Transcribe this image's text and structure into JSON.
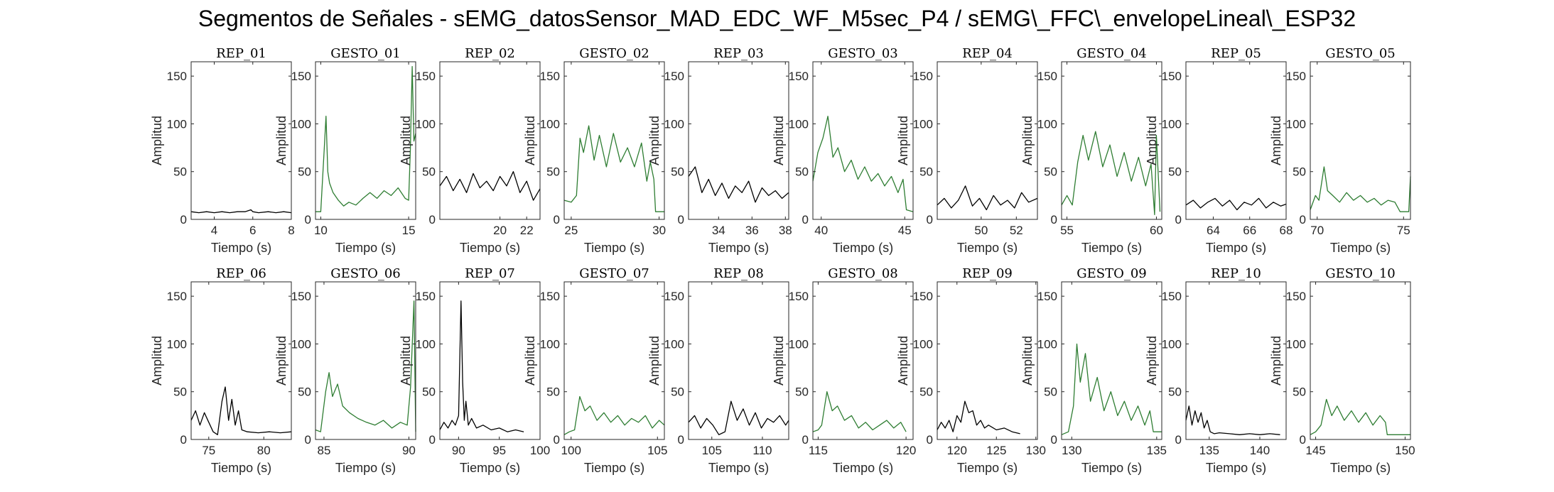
{
  "figure": {
    "title": "Segmentos de Señales - sEMG_datosSensor_MAD_EDC_WF_M5sec_P4 / sEMG\\_FFC\\_envelopeLineal\\_ESP32",
    "colors": {
      "rep": "#000000",
      "gesto": "#2e7d32",
      "axis": "#262626"
    }
  },
  "chart_data": [
    {
      "type": "line",
      "title": "REP_01",
      "xlabel": "Tiempo (s)",
      "ylabel": "Amplitud",
      "xlim": [
        2.8,
        8
      ],
      "ylim": [
        0,
        165
      ],
      "xticks": [
        4,
        6,
        8
      ],
      "yticks": [
        0,
        50,
        100,
        150
      ],
      "kind": "rep",
      "x": [
        2.8,
        3.2,
        3.6,
        4.0,
        4.4,
        4.8,
        5.2,
        5.6,
        5.9,
        6.0,
        6.3,
        6.8,
        7.2,
        7.6,
        8.0
      ],
      "y": [
        8,
        7,
        8,
        7,
        8,
        7,
        8,
        8,
        10,
        8,
        7,
        8,
        7,
        8,
        7
      ]
    },
    {
      "type": "line",
      "title": "GESTO_01",
      "xlabel": "Tiempo (s)",
      "ylabel": "Amplitud",
      "xlim": [
        9.7,
        15.4
      ],
      "ylim": [
        0,
        165
      ],
      "xticks": [
        10,
        15
      ],
      "yticks": [
        0,
        50,
        100,
        150
      ],
      "kind": "gesto",
      "x": [
        9.7,
        10.0,
        10.2,
        10.3,
        10.4,
        10.5,
        10.7,
        11.0,
        11.3,
        11.6,
        12.0,
        12.4,
        12.8,
        13.2,
        13.6,
        14.0,
        14.4,
        14.8,
        15.0,
        15.1,
        15.2,
        15.3,
        15.4
      ],
      "y": [
        8,
        8,
        75,
        108,
        50,
        38,
        28,
        20,
        14,
        18,
        15,
        22,
        28,
        22,
        30,
        25,
        33,
        22,
        20,
        75,
        160,
        82,
        90
      ]
    },
    {
      "type": "line",
      "title": "REP_02",
      "xlabel": "Tiempo (s)",
      "ylabel": "Amplitud",
      "xlim": [
        15.5,
        23
      ],
      "ylim": [
        0,
        165
      ],
      "xticks": [
        20,
        22
      ],
      "yticks": [
        0,
        50,
        100,
        150
      ],
      "kind": "rep",
      "x": [
        15.5,
        16,
        16.5,
        17,
        17.5,
        18,
        18.5,
        19,
        19.5,
        20,
        20.5,
        21,
        21.5,
        22,
        22.5,
        23
      ],
      "y": [
        35,
        45,
        30,
        42,
        28,
        48,
        33,
        40,
        30,
        45,
        35,
        50,
        28,
        40,
        20,
        32
      ]
    },
    {
      "type": "line",
      "title": "GESTO_02",
      "xlabel": "Tiempo (s)",
      "ylabel": "Amplitud",
      "xlim": [
        24.6,
        30.3
      ],
      "ylim": [
        0,
        165
      ],
      "xticks": [
        25,
        30
      ],
      "yticks": [
        0,
        50,
        100,
        150
      ],
      "kind": "gesto",
      "x": [
        24.6,
        25.0,
        25.3,
        25.5,
        25.7,
        26.0,
        26.3,
        26.6,
        27.0,
        27.4,
        27.8,
        28.2,
        28.6,
        29.0,
        29.3,
        29.5,
        29.7,
        29.8,
        30.3
      ],
      "y": [
        20,
        18,
        25,
        85,
        70,
        98,
        62,
        88,
        55,
        90,
        60,
        75,
        55,
        80,
        40,
        60,
        42,
        8,
        8
      ]
    },
    {
      "type": "line",
      "title": "REP_03",
      "xlabel": "Tiempo (s)",
      "ylabel": "Amplitud",
      "xlim": [
        32.2,
        38.2
      ],
      "ylim": [
        0,
        165
      ],
      "xticks": [
        34,
        36,
        38
      ],
      "yticks": [
        0,
        50,
        100,
        150
      ],
      "kind": "rep",
      "x": [
        32.2,
        32.6,
        33.0,
        33.4,
        33.8,
        34.2,
        34.6,
        35.0,
        35.4,
        35.8,
        36.2,
        36.6,
        37.0,
        37.4,
        37.8,
        38.2
      ],
      "y": [
        45,
        55,
        28,
        42,
        25,
        38,
        22,
        35,
        28,
        40,
        18,
        33,
        25,
        30,
        22,
        28
      ]
    },
    {
      "type": "line",
      "title": "GESTO_03",
      "xlabel": "Tiempo (s)",
      "ylabel": "Amplitud",
      "xlim": [
        39.5,
        45.5
      ],
      "ylim": [
        0,
        165
      ],
      "xticks": [
        40,
        45
      ],
      "yticks": [
        0,
        50,
        100,
        150
      ],
      "kind": "gesto",
      "x": [
        39.5,
        39.8,
        40.1,
        40.4,
        40.7,
        41.0,
        41.4,
        41.8,
        42.2,
        42.6,
        43.0,
        43.4,
        43.8,
        44.2,
        44.6,
        44.9,
        45.1,
        45.5
      ],
      "y": [
        40,
        70,
        85,
        108,
        65,
        75,
        50,
        62,
        42,
        55,
        40,
        48,
        35,
        45,
        28,
        42,
        10,
        8
      ]
    },
    {
      "type": "line",
      "title": "REP_04",
      "xlabel": "Tiempo (s)",
      "ylabel": "Amplitud",
      "xlim": [
        47.5,
        53.2
      ],
      "ylim": [
        0,
        165
      ],
      "xticks": [
        50,
        52
      ],
      "yticks": [
        0,
        50,
        100,
        150
      ],
      "kind": "rep",
      "x": [
        47.5,
        47.9,
        48.3,
        48.7,
        49.1,
        49.5,
        49.9,
        50.3,
        50.7,
        51.1,
        51.5,
        51.9,
        52.3,
        52.7,
        53.2
      ],
      "y": [
        15,
        22,
        12,
        20,
        35,
        14,
        22,
        10,
        25,
        15,
        20,
        12,
        28,
        18,
        22
      ]
    },
    {
      "type": "line",
      "title": "GESTO_04",
      "xlabel": "Tiempo (s)",
      "ylabel": "Amplitud",
      "xlim": [
        54.7,
        60.3
      ],
      "ylim": [
        0,
        165
      ],
      "xticks": [
        55,
        60
      ],
      "yticks": [
        0,
        50,
        100,
        150
      ],
      "kind": "gesto",
      "x": [
        54.7,
        55.0,
        55.3,
        55.6,
        55.9,
        56.2,
        56.6,
        57.0,
        57.4,
        57.8,
        58.2,
        58.6,
        59.0,
        59.4,
        59.7,
        59.9,
        60.0,
        60.2
      ],
      "y": [
        15,
        25,
        15,
        60,
        88,
        62,
        92,
        55,
        78,
        45,
        70,
        40,
        65,
        35,
        58,
        5,
        88,
        8
      ]
    },
    {
      "type": "line",
      "title": "REP_05",
      "xlabel": "Tiempo (s)",
      "ylabel": "Amplitud",
      "xlim": [
        62.5,
        68
      ],
      "ylim": [
        0,
        165
      ],
      "xticks": [
        64,
        66,
        68
      ],
      "yticks": [
        0,
        50,
        100,
        150
      ],
      "kind": "rep",
      "x": [
        62.5,
        62.9,
        63.3,
        63.7,
        64.1,
        64.5,
        64.9,
        65.3,
        65.7,
        66.1,
        66.5,
        66.9,
        67.3,
        67.7,
        68.0
      ],
      "y": [
        15,
        20,
        12,
        18,
        22,
        14,
        20,
        10,
        18,
        15,
        22,
        12,
        18,
        14,
        16
      ]
    },
    {
      "type": "line",
      "title": "GESTO_05",
      "xlabel": "Tiempo (s)",
      "ylabel": "Amplitud",
      "xlim": [
        69.6,
        75.4
      ],
      "ylim": [
        0,
        165
      ],
      "xticks": [
        70,
        75
      ],
      "yticks": [
        0,
        50,
        100,
        150
      ],
      "kind": "gesto",
      "x": [
        69.6,
        69.9,
        70.1,
        70.4,
        70.6,
        70.9,
        71.3,
        71.7,
        72.1,
        72.5,
        72.9,
        73.3,
        73.7,
        74.1,
        74.5,
        74.8,
        75.0,
        75.3,
        75.4
      ],
      "y": [
        10,
        25,
        20,
        55,
        30,
        25,
        18,
        28,
        20,
        25,
        18,
        22,
        15,
        20,
        18,
        8,
        8,
        8,
        45
      ]
    },
    {
      "type": "line",
      "title": "REP_06",
      "xlabel": "Tiempo (s)",
      "ylabel": "Amplitud",
      "xlim": [
        73.4,
        82.5
      ],
      "ylim": [
        0,
        165
      ],
      "xticks": [
        75,
        80
      ],
      "yticks": [
        0,
        50,
        100,
        150
      ],
      "kind": "rep",
      "x": [
        73.4,
        73.8,
        74.2,
        74.6,
        75.0,
        75.4,
        75.8,
        76.2,
        76.5,
        76.8,
        77.1,
        77.4,
        77.7,
        78.0,
        78.5,
        79.5,
        80.5,
        81.5,
        82.5
      ],
      "y": [
        20,
        30,
        15,
        28,
        18,
        8,
        5,
        40,
        55,
        20,
        42,
        15,
        30,
        10,
        8,
        7,
        8,
        7,
        8
      ]
    },
    {
      "type": "line",
      "title": "GESTO_06",
      "xlabel": "Tiempo (s)",
      "ylabel": "Amplitud",
      "xlim": [
        84.5,
        90.4
      ],
      "ylim": [
        0,
        165
      ],
      "xticks": [
        85,
        90
      ],
      "yticks": [
        0,
        50,
        100,
        150
      ],
      "kind": "gesto",
      "x": [
        84.5,
        84.8,
        85.1,
        85.3,
        85.5,
        85.8,
        86.1,
        86.5,
        87.0,
        87.5,
        88.0,
        88.5,
        89.0,
        89.5,
        89.9,
        90.1,
        90.3,
        90.4
      ],
      "y": [
        10,
        8,
        50,
        70,
        45,
        58,
        35,
        28,
        22,
        18,
        15,
        20,
        12,
        18,
        15,
        55,
        145,
        8
      ]
    },
    {
      "type": "line",
      "title": "REP_07",
      "xlabel": "Tiempo (s)",
      "ylabel": "Amplitud",
      "xlim": [
        87.7,
        100
      ],
      "ylim": [
        0,
        165
      ],
      "xticks": [
        90,
        95,
        100
      ],
      "yticks": [
        0,
        50,
        100,
        150
      ],
      "kind": "rep",
      "x": [
        87.7,
        88.2,
        88.7,
        89.2,
        89.6,
        90.0,
        90.3,
        90.5,
        90.7,
        90.9,
        91.2,
        91.6,
        92.2,
        93.0,
        94.0,
        95.0,
        96.0,
        97.0,
        98.0
      ],
      "y": [
        10,
        18,
        12,
        20,
        15,
        25,
        145,
        60,
        20,
        40,
        15,
        22,
        12,
        15,
        10,
        12,
        8,
        10,
        8
      ]
    },
    {
      "type": "line",
      "title": "GESTO_07",
      "xlabel": "Tiempo (s)",
      "ylabel": "Amplitud",
      "xlim": [
        99.6,
        105.4
      ],
      "ylim": [
        0,
        165
      ],
      "xticks": [
        100,
        105
      ],
      "yticks": [
        0,
        50,
        100,
        150
      ],
      "kind": "gesto",
      "x": [
        99.6,
        99.9,
        100.2,
        100.5,
        100.8,
        101.1,
        101.5,
        101.9,
        102.3,
        102.7,
        103.1,
        103.5,
        103.9,
        104.3,
        104.7,
        105.1,
        105.4
      ],
      "y": [
        5,
        8,
        10,
        45,
        30,
        35,
        20,
        28,
        18,
        25,
        15,
        22,
        18,
        25,
        12,
        20,
        15
      ]
    },
    {
      "type": "line",
      "title": "REP_08",
      "xlabel": "Tiempo (s)",
      "ylabel": "Amplitud",
      "xlim": [
        102.7,
        112.6
      ],
      "ylim": [
        0,
        165
      ],
      "xticks": [
        105,
        110
      ],
      "yticks": [
        0,
        50,
        100,
        150
      ],
      "kind": "rep",
      "x": [
        102.7,
        103.3,
        103.9,
        104.5,
        105.1,
        105.7,
        106.3,
        106.9,
        107.5,
        108.1,
        108.7,
        109.3,
        109.9,
        110.5,
        111.1,
        111.7,
        112.3,
        112.6
      ],
      "y": [
        18,
        25,
        12,
        22,
        15,
        5,
        8,
        40,
        20,
        32,
        15,
        28,
        12,
        22,
        18,
        25,
        15,
        20
      ]
    },
    {
      "type": "line",
      "title": "GESTO_08",
      "xlabel": "Tiempo (s)",
      "ylabel": "Amplitud",
      "xlim": [
        114.7,
        120.4
      ],
      "ylim": [
        0,
        165
      ],
      "xticks": [
        115,
        120
      ],
      "yticks": [
        0,
        50,
        100,
        150
      ],
      "kind": "gesto",
      "x": [
        114.7,
        115.0,
        115.2,
        115.5,
        115.8,
        116.1,
        116.5,
        116.9,
        117.3,
        117.7,
        118.1,
        118.5,
        118.9,
        119.3,
        119.7,
        120.0
      ],
      "y": [
        8,
        10,
        15,
        50,
        30,
        35,
        20,
        25,
        12,
        18,
        10,
        15,
        20,
        12,
        18,
        8
      ]
    },
    {
      "type": "line",
      "title": "REP_09",
      "xlabel": "Tiempo (s)",
      "ylabel": "Amplitud",
      "xlim": [
        117.5,
        130.2
      ],
      "ylim": [
        0,
        165
      ],
      "xticks": [
        120,
        125,
        130
      ],
      "yticks": [
        0,
        50,
        100,
        150
      ],
      "kind": "rep",
      "x": [
        117.5,
        118.0,
        118.5,
        119.0,
        119.5,
        120.0,
        120.5,
        121.0,
        121.5,
        122.0,
        122.5,
        123.0,
        123.5,
        124.0,
        125.0,
        126.0,
        127.0,
        128.0
      ],
      "y": [
        10,
        18,
        12,
        20,
        8,
        25,
        18,
        40,
        28,
        30,
        15,
        20,
        12,
        15,
        10,
        12,
        8,
        6
      ]
    },
    {
      "type": "line",
      "title": "GESTO_09",
      "xlabel": "Tiempo (s)",
      "ylabel": "Amplitud",
      "xlim": [
        129.4,
        135.3
      ],
      "ylim": [
        0,
        165
      ],
      "xticks": [
        130,
        135
      ],
      "yticks": [
        0,
        50,
        100,
        150
      ],
      "kind": "gesto",
      "x": [
        129.4,
        129.8,
        130.1,
        130.3,
        130.5,
        130.8,
        131.1,
        131.5,
        131.9,
        132.3,
        132.7,
        133.1,
        133.5,
        133.9,
        134.3,
        134.6,
        134.8,
        135.3
      ],
      "y": [
        5,
        8,
        35,
        100,
        60,
        90,
        40,
        65,
        30,
        50,
        25,
        40,
        20,
        35,
        15,
        30,
        8,
        8
      ]
    },
    {
      "type": "line",
      "title": "REP_10",
      "xlabel": "Tiempo (s)",
      "ylabel": "Amplitud",
      "xlim": [
        132.7,
        142.6
      ],
      "ylim": [
        0,
        165
      ],
      "xticks": [
        135,
        140
      ],
      "yticks": [
        0,
        50,
        100,
        150
      ],
      "kind": "rep",
      "x": [
        132.7,
        133.0,
        133.3,
        133.6,
        133.9,
        134.2,
        134.5,
        134.8,
        135.1,
        135.5,
        136.0,
        137.0,
        138.0,
        139.0,
        140.0,
        141.0,
        142.0
      ],
      "y": [
        20,
        35,
        15,
        30,
        18,
        28,
        12,
        20,
        8,
        6,
        7,
        6,
        5,
        6,
        5,
        6,
        5
      ]
    },
    {
      "type": "line",
      "title": "GESTO_10",
      "xlabel": "Tiempo (s)",
      "ylabel": "Amplitud",
      "xlim": [
        144.7,
        150.3
      ],
      "ylim": [
        0,
        165
      ],
      "xticks": [
        145,
        150
      ],
      "yticks": [
        0,
        50,
        100,
        150
      ],
      "kind": "gesto",
      "x": [
        144.7,
        145.0,
        145.3,
        145.6,
        145.9,
        146.2,
        146.6,
        147.0,
        147.4,
        147.8,
        148.2,
        148.6,
        148.9,
        149.0,
        150.3
      ],
      "y": [
        5,
        8,
        15,
        42,
        25,
        35,
        20,
        30,
        18,
        28,
        15,
        25,
        18,
        5,
        5
      ]
    }
  ]
}
